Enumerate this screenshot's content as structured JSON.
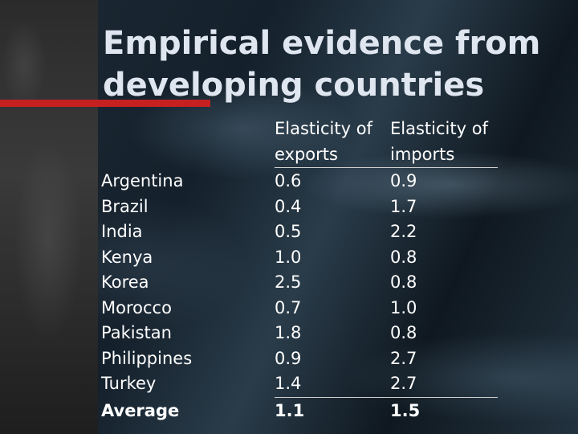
{
  "title_line1": "Empirical evidence from",
  "title_line2": "developing countries",
  "table": {
    "headers": {
      "exports_line1": "Elasticity of",
      "exports_line2": "exports",
      "imports_line1": "Elasticity of",
      "imports_line2": "imports"
    },
    "rows": [
      {
        "country": "Argentina",
        "exports": "0.6",
        "imports": "0.9"
      },
      {
        "country": "Brazil",
        "exports": "0.4",
        "imports": "1.7"
      },
      {
        "country": "India",
        "exports": "0.5",
        "imports": "2.2"
      },
      {
        "country": "Kenya",
        "exports": "1.0",
        "imports": "0.8"
      },
      {
        "country": "Korea",
        "exports": "2.5",
        "imports": "0.8"
      },
      {
        "country": "Morocco",
        "exports": "0.7",
        "imports": "1.0"
      },
      {
        "country": "Pakistan",
        "exports": "1.8",
        "imports": "0.8"
      },
      {
        "country": "Philippines",
        "exports": "0.9",
        "imports": "2.7"
      },
      {
        "country": "Turkey",
        "exports": "1.4",
        "imports": "2.7"
      }
    ],
    "average": {
      "label": "Average",
      "exports": "1.1",
      "imports": "1.5"
    }
  },
  "colors": {
    "accent_bar": "#c62020",
    "title_text": "#dfe6f0",
    "body_text": "#ffffff"
  }
}
